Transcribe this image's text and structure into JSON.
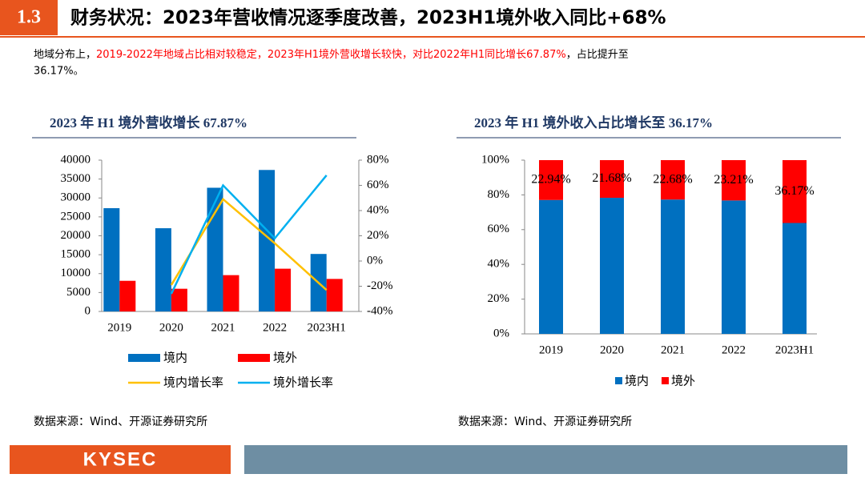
{
  "header": {
    "number": "1.3",
    "title": "财务状况：2023年营收情况逐季度改善，2023H1境外收入同比+68%"
  },
  "summary": [
    "地域分布上，",
    "2019-2022年地域占比相对较稳定，2023年H1境外营收增长较快，对比2022年H1同比增长67.87%",
    "，占比提升至36.17%。"
  ],
  "logo": "KYSEC",
  "chart_data": [
    {
      "type": "bar_line",
      "title": "2023 年 H1 境外营收增长 67.87%",
      "source": "数据来源：Wind、开源证券研究所",
      "categories": [
        "2019",
        "2020",
        "2021",
        "2022",
        "2023H1"
      ],
      "ylim": [
        0,
        40000
      ],
      "yticks": [
        0,
        5000,
        10000,
        15000,
        20000,
        25000,
        30000,
        35000,
        40000
      ],
      "y2lim": [
        -40,
        80
      ],
      "y2ticks": [
        {
          "value": -40,
          "label": "-40%"
        },
        {
          "value": -20,
          "label": "-20%"
        },
        {
          "value": 0,
          "label": "0%"
        },
        {
          "value": 20,
          "label": "20%"
        },
        {
          "value": 40,
          "label": "40%"
        },
        {
          "value": 60,
          "label": "60%"
        },
        {
          "value": 80,
          "label": "80%"
        }
      ],
      "series": [
        {
          "name": "境内",
          "kind": "bar",
          "color": "#0070c0",
          "values": [
            27300,
            22000,
            32700,
            37400,
            15200
          ]
        },
        {
          "name": "境外",
          "kind": "bar",
          "color": "#ff0000",
          "values": [
            8100,
            6000,
            9600,
            11300,
            8600
          ]
        },
        {
          "name": "境内增长率",
          "kind": "line",
          "axis": "y2",
          "color": "#ffc000",
          "values": [
            null,
            -19,
            49,
            14,
            -23
          ]
        },
        {
          "name": "境外增长率",
          "kind": "line",
          "axis": "y2",
          "color": "#00b0f0",
          "values": [
            null,
            -26,
            60,
            18,
            68
          ]
        }
      ]
    },
    {
      "type": "stacked_bar",
      "title": "2023 年 H1 境外收入占比增长至 36.17%",
      "source": "数据来源：Wind、开源证券研究所",
      "categories": [
        "2019",
        "2020",
        "2021",
        "2022",
        "2023H1"
      ],
      "ylim": [
        0,
        100
      ],
      "yticks": [
        {
          "value": 0,
          "label": "0%"
        },
        {
          "value": 20,
          "label": "20%"
        },
        {
          "value": 40,
          "label": "40%"
        },
        {
          "value": 60,
          "label": "60%"
        },
        {
          "value": 80,
          "label": "80%"
        },
        {
          "value": 100,
          "label": "100%"
        }
      ],
      "series": [
        {
          "name": "境内",
          "color": "#0070c0",
          "values": [
            77.06,
            78.32,
            77.32,
            76.79,
            63.83
          ]
        },
        {
          "name": "境外",
          "color": "#ff0000",
          "values": [
            22.94,
            21.68,
            22.68,
            23.21,
            36.17
          ],
          "value_labels": [
            "22.94%",
            "21.68%",
            "22.68%",
            "23.21%",
            "36.17%"
          ]
        }
      ]
    }
  ]
}
